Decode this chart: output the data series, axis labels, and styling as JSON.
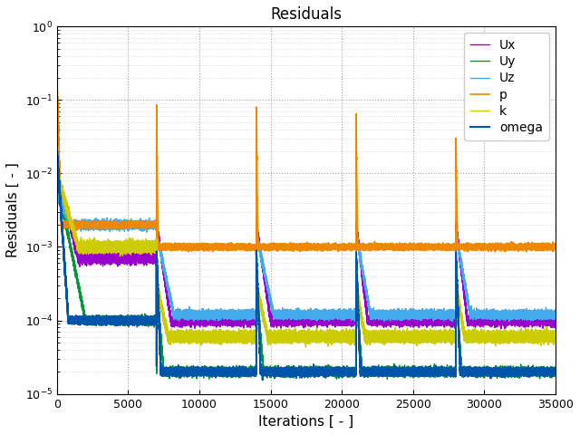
{
  "title": "Residuals",
  "xlabel": "Iterations [ - ]",
  "ylabel": "Residuals [ - ]",
  "xlim": [
    0,
    35000
  ],
  "ylim_log": [
    1e-05,
    1.0
  ],
  "series": {
    "Ux": {
      "color": "#9900cc",
      "lw": 1.0
    },
    "Uy": {
      "color": "#009933",
      "lw": 1.0
    },
    "Uz": {
      "color": "#44aaee",
      "lw": 1.0
    },
    "p": {
      "color": "#ee8800",
      "lw": 1.2
    },
    "k": {
      "color": "#cccc00",
      "lw": 1.0
    },
    "omega": {
      "color": "#0055aa",
      "lw": 1.5
    }
  },
  "cycle_starts": [
    0,
    7000,
    14000,
    21000,
    28000
  ],
  "total": 35000,
  "bg_color": "#ffffff",
  "grid_color": "#999999",
  "legend_loc": "upper right"
}
